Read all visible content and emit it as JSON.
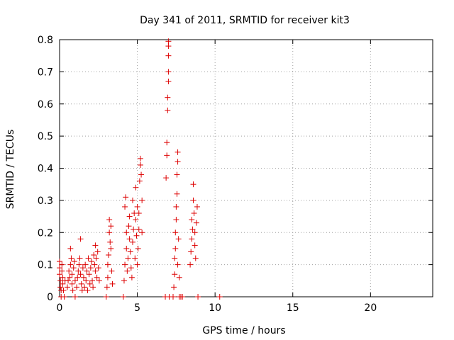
{
  "chart_data": {
    "type": "scatter",
    "title": "Day 341 of 2011, SRMTID for receiver kit3",
    "xlabel": "GPS time / hours",
    "ylabel": "SRMTID / TECUs",
    "xlim": [
      0,
      24
    ],
    "ylim": [
      0,
      0.8
    ],
    "xticks": [
      0,
      5,
      10,
      15,
      20
    ],
    "yticks": [
      0,
      0.1,
      0.2,
      0.3,
      0.4,
      0.5,
      0.6,
      0.7,
      0.8
    ],
    "xtick_labels": [
      "0",
      "5",
      "10",
      "15",
      "20"
    ],
    "ytick_labels": [
      "0",
      "0.1",
      "0.2",
      "0.3",
      "0.4",
      "0.5",
      "0.6",
      "0.7",
      "0.8"
    ],
    "grid": true,
    "marker": "+",
    "color": "#dd0000",
    "series": [
      {
        "name": "SRMTID",
        "points": [
          [
            0.0,
            0.11
          ],
          [
            0.0,
            0.09
          ],
          [
            0.0,
            0.07
          ],
          [
            0.05,
            0.05
          ],
          [
            0.05,
            0.03
          ],
          [
            0.1,
            0.02
          ],
          [
            0.1,
            0.0
          ],
          [
            0.15,
            0.1
          ],
          [
            0.15,
            0.08
          ],
          [
            0.2,
            0.06
          ],
          [
            0.2,
            0.04
          ],
          [
            0.25,
            0.02
          ],
          [
            0.3,
            0.0
          ],
          [
            0.35,
            0.05
          ],
          [
            0.5,
            0.03
          ],
          [
            0.55,
            0.05
          ],
          [
            0.6,
            0.08
          ],
          [
            0.65,
            0.06
          ],
          [
            0.7,
            0.1
          ],
          [
            0.7,
            0.15
          ],
          [
            0.75,
            0.12
          ],
          [
            0.8,
            0.07
          ],
          [
            0.8,
            0.04
          ],
          [
            0.85,
            0.02
          ],
          [
            0.9,
            0.09
          ],
          [
            0.95,
            0.11
          ],
          [
            1.0,
            0.05
          ],
          [
            1.0,
            0.0
          ],
          [
            1.1,
            0.03
          ],
          [
            1.15,
            0.06
          ],
          [
            1.2,
            0.08
          ],
          [
            1.25,
            0.1
          ],
          [
            1.3,
            0.12
          ],
          [
            1.35,
            0.07
          ],
          [
            1.35,
            0.18
          ],
          [
            1.4,
            0.04
          ],
          [
            1.45,
            0.02
          ],
          [
            1.5,
            0.09
          ],
          [
            1.55,
            0.06
          ],
          [
            1.6,
            0.03
          ],
          [
            1.65,
            0.1
          ],
          [
            1.7,
            0.05
          ],
          [
            1.75,
            0.08
          ],
          [
            1.8,
            0.02
          ],
          [
            1.85,
            0.12
          ],
          [
            1.9,
            0.07
          ],
          [
            1.95,
            0.04
          ],
          [
            2.0,
            0.09
          ],
          [
            2.05,
            0.11
          ],
          [
            2.1,
            0.05
          ],
          [
            2.15,
            0.03
          ],
          [
            2.2,
            0.13
          ],
          [
            2.25,
            0.1
          ],
          [
            2.3,
            0.08
          ],
          [
            2.3,
            0.16
          ],
          [
            2.35,
            0.12
          ],
          [
            2.4,
            0.06
          ],
          [
            2.45,
            0.14
          ],
          [
            2.5,
            0.09
          ],
          [
            2.55,
            0.05
          ],
          [
            3.0,
            0.0
          ],
          [
            3.05,
            0.03
          ],
          [
            3.1,
            0.06
          ],
          [
            3.1,
            0.1
          ],
          [
            3.15,
            0.13
          ],
          [
            3.2,
            0.2
          ],
          [
            3.2,
            0.24
          ],
          [
            3.25,
            0.17
          ],
          [
            3.3,
            0.15
          ],
          [
            3.3,
            0.22
          ],
          [
            3.35,
            0.08
          ],
          [
            3.4,
            0.04
          ],
          [
            4.1,
            0.0
          ],
          [
            4.15,
            0.05
          ],
          [
            4.2,
            0.1
          ],
          [
            4.2,
            0.28
          ],
          [
            4.25,
            0.31
          ],
          [
            4.3,
            0.15
          ],
          [
            4.3,
            0.2
          ],
          [
            4.35,
            0.08
          ],
          [
            4.4,
            0.12
          ],
          [
            4.45,
            0.22
          ],
          [
            4.5,
            0.18
          ],
          [
            4.5,
            0.25
          ],
          [
            4.55,
            0.14
          ],
          [
            4.6,
            0.09
          ],
          [
            4.65,
            0.06
          ],
          [
            4.7,
            0.17
          ],
          [
            4.7,
            0.3
          ],
          [
            4.75,
            0.21
          ],
          [
            4.8,
            0.26
          ],
          [
            4.85,
            0.12
          ],
          [
            4.9,
            0.24
          ],
          [
            4.9,
            0.34
          ],
          [
            4.95,
            0.19
          ],
          [
            5.0,
            0.1
          ],
          [
            5.0,
            0.28
          ],
          [
            5.05,
            0.15
          ],
          [
            5.1,
            0.21
          ],
          [
            5.1,
            0.26
          ],
          [
            5.15,
            0.36
          ],
          [
            5.2,
            0.41
          ],
          [
            5.2,
            0.43
          ],
          [
            5.25,
            0.38
          ],
          [
            5.3,
            0.3
          ],
          [
            5.3,
            0.2
          ],
          [
            6.8,
            0.0
          ],
          [
            6.85,
            0.37
          ],
          [
            6.9,
            0.44
          ],
          [
            6.9,
            0.48
          ],
          [
            6.95,
            0.58
          ],
          [
            6.95,
            0.62
          ],
          [
            7.0,
            0.67
          ],
          [
            7.0,
            0.7
          ],
          [
            7.0,
            0.75
          ],
          [
            7.0,
            0.78
          ],
          [
            7.0,
            0.795
          ],
          [
            7.05,
            0.0
          ],
          [
            7.3,
            0.0
          ],
          [
            7.35,
            0.03
          ],
          [
            7.4,
            0.07
          ],
          [
            7.4,
            0.12
          ],
          [
            7.45,
            0.15
          ],
          [
            7.45,
            0.2
          ],
          [
            7.5,
            0.24
          ],
          [
            7.5,
            0.28
          ],
          [
            7.55,
            0.32
          ],
          [
            7.55,
            0.38
          ],
          [
            7.6,
            0.42
          ],
          [
            7.6,
            0.45
          ],
          [
            7.6,
            0.1
          ],
          [
            7.65,
            0.18
          ],
          [
            7.7,
            0.06
          ],
          [
            7.7,
            0.0
          ],
          [
            7.8,
            0.0
          ],
          [
            7.9,
            0.0
          ],
          [
            8.4,
            0.1
          ],
          [
            8.45,
            0.14
          ],
          [
            8.5,
            0.18
          ],
          [
            8.5,
            0.24
          ],
          [
            8.55,
            0.21
          ],
          [
            8.6,
            0.3
          ],
          [
            8.6,
            0.35
          ],
          [
            8.65,
            0.26
          ],
          [
            8.7,
            0.2
          ],
          [
            8.7,
            0.16
          ],
          [
            8.75,
            0.12
          ],
          [
            8.8,
            0.23
          ],
          [
            8.85,
            0.28
          ],
          [
            8.9,
            0.0
          ],
          [
            10.3,
            0.0
          ]
        ]
      }
    ]
  }
}
